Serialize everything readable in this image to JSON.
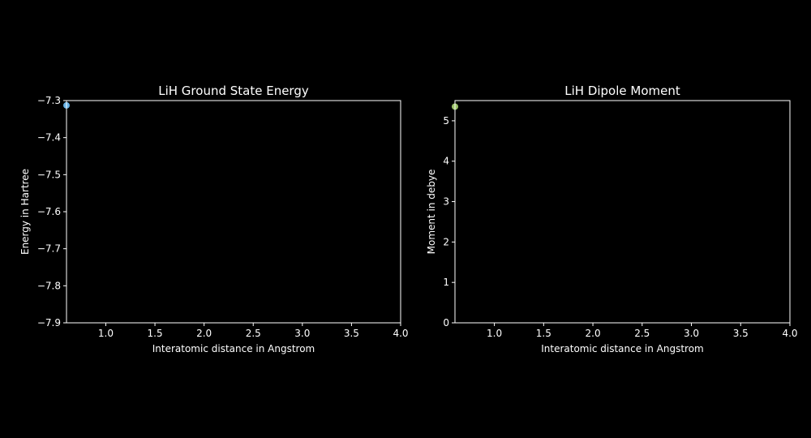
{
  "chart_data": [
    {
      "type": "line",
      "title": "LiH Ground State Energy",
      "xlabel": "Interatomic distance in Angstrom",
      "ylabel": "Energy in Hartree",
      "xlim": [
        0.6,
        4.0
      ],
      "ylim": [
        -7.9,
        -7.3
      ],
      "xticks": [
        1.0,
        1.5,
        2.0,
        2.5,
        3.0,
        3.5,
        4.0
      ],
      "xtick_labels": [
        "1.0",
        "1.5",
        "2.0",
        "2.5",
        "3.0",
        "3.5",
        "4.0"
      ],
      "yticks": [
        -7.3,
        -7.4,
        -7.5,
        -7.6,
        -7.7,
        -7.8,
        -7.9
      ],
      "ytick_labels": [
        "−7.3",
        "−7.4",
        "−7.5",
        "−7.6",
        "−7.7",
        "−7.8",
        "−7.9"
      ],
      "grid": false,
      "series": [
        {
          "color": "#6ab4e8",
          "points": [
            {
              "x": 0.6,
              "y": -7.313
            }
          ]
        }
      ]
    },
    {
      "type": "line",
      "title": "LiH Dipole Moment",
      "xlabel": "Interatomic distance in Angstrom",
      "ylabel": "Moment in debye",
      "xlim": [
        0.6,
        4.0
      ],
      "ylim": [
        0,
        5.5
      ],
      "xticks": [
        1.0,
        1.5,
        2.0,
        2.5,
        3.0,
        3.5,
        4.0
      ],
      "xtick_labels": [
        "1.0",
        "1.5",
        "2.0",
        "2.5",
        "3.0",
        "3.5",
        "4.0"
      ],
      "yticks": [
        0,
        1,
        2,
        3,
        4,
        5
      ],
      "ytick_labels": [
        "0",
        "1",
        "2",
        "3",
        "4",
        "5"
      ],
      "grid": false,
      "series": [
        {
          "color": "#9cc36a",
          "points": [
            {
              "x": 0.6,
              "y": 5.35
            }
          ]
        }
      ]
    }
  ]
}
